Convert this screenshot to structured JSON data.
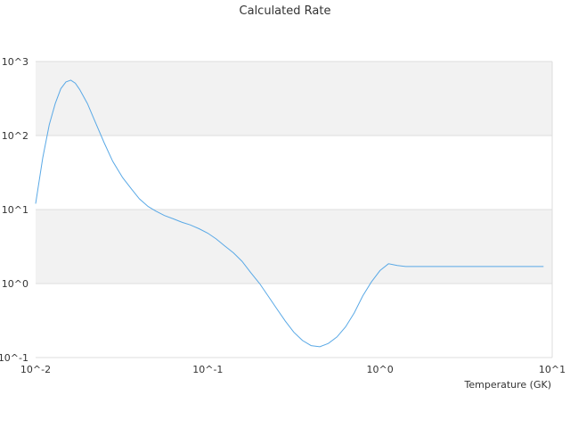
{
  "chart_data": {
    "type": "line",
    "title": "Calculated Rate",
    "xlabel": "Temperature (GK)",
    "ylabel": "",
    "x_scale": "log",
    "y_scale": "log",
    "xlim": [
      0.01,
      10
    ],
    "ylim": [
      0.1,
      1000
    ],
    "x_ticks": [
      "10^-2",
      "10^-1",
      "10^0",
      "10^1"
    ],
    "y_ticks": [
      "10^3",
      "10^2",
      "10^1",
      "10^0",
      "10^-1"
    ],
    "grid": "horizontal",
    "band_color": "#f2f2f2",
    "line_color": "#5aa9e6",
    "series": [
      {
        "x": [
          0.01,
          0.011,
          0.012,
          0.013,
          0.014,
          0.015,
          0.016,
          0.017,
          0.018,
          0.02,
          0.022,
          0.025,
          0.028,
          0.032,
          0.036,
          0.04,
          0.045,
          0.05,
          0.056,
          0.063,
          0.071,
          0.079,
          0.089,
          0.1,
          0.112,
          0.126,
          0.141,
          0.158,
          0.178,
          0.2,
          0.224,
          0.251,
          0.282,
          0.316,
          0.355,
          0.398,
          0.447,
          0.501,
          0.562,
          0.631,
          0.708,
          0.794,
          0.891,
          1.0,
          1.12,
          1.26,
          1.41,
          1.58,
          1.78,
          2.0,
          2.24,
          2.51,
          2.82,
          3.16,
          3.55,
          3.98,
          4.47,
          5.01,
          5.62,
          6.31,
          7.08,
          7.94,
          8.91
        ],
        "y": [
          12,
          50,
          140,
          270,
          430,
          530,
          560,
          510,
          420,
          270,
          160,
          80,
          45,
          27,
          19,
          14,
          11,
          9.5,
          8.3,
          7.5,
          6.7,
          6.2,
          5.5,
          4.8,
          4.0,
          3.2,
          2.6,
          2.0,
          1.4,
          1.0,
          0.68,
          0.46,
          0.31,
          0.22,
          0.17,
          0.145,
          0.14,
          0.155,
          0.19,
          0.26,
          0.4,
          0.68,
          1.05,
          1.5,
          1.85,
          1.75,
          1.7,
          1.7,
          1.7,
          1.7,
          1.7,
          1.7,
          1.7,
          1.7,
          1.7,
          1.7,
          1.7,
          1.7,
          1.7,
          1.7,
          1.7,
          1.7,
          1.7
        ]
      }
    ]
  }
}
